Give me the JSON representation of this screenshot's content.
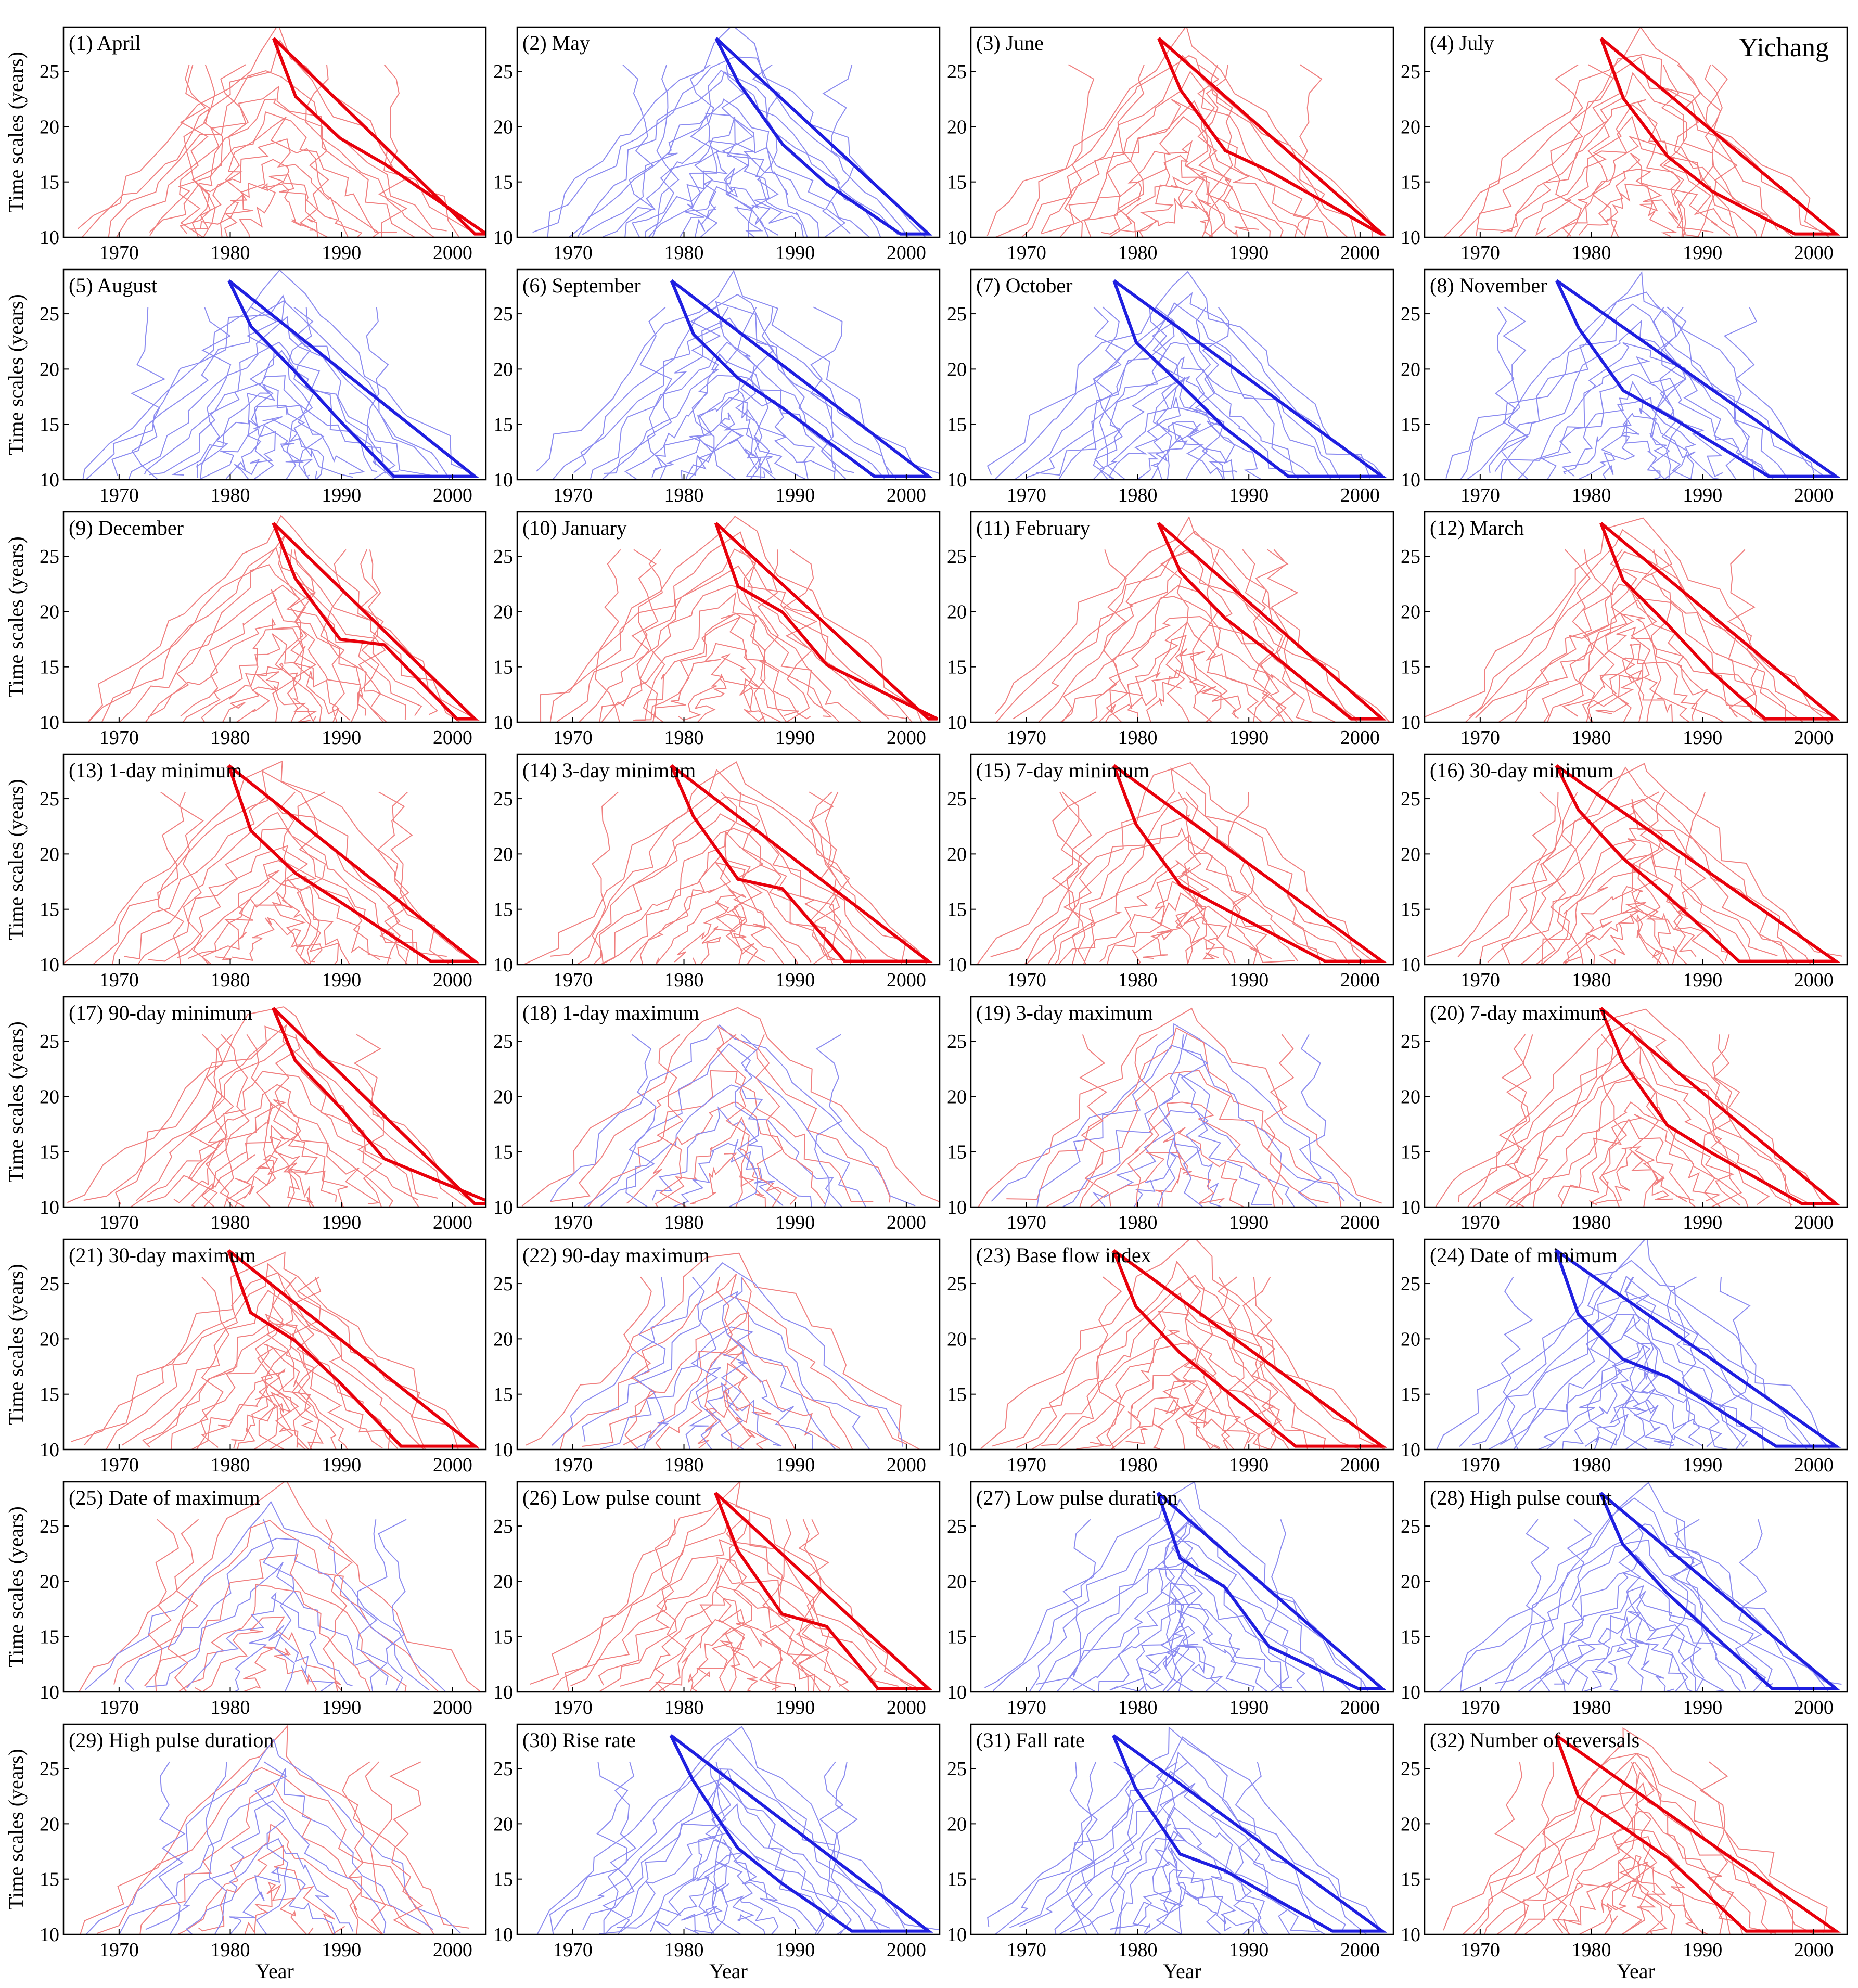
{
  "figure": {
    "station_label": "Yichang",
    "y_axis_label": "Time scales (years)",
    "x_axis_label": "Year",
    "colors": {
      "positive": "#e8000b",
      "negative": "#1f1fe0",
      "positive_faint": "#f08080",
      "negative_faint": "#8c8cf0",
      "axis": "#000000"
    }
  },
  "chart_data": {
    "type": "contour",
    "grid": {
      "rows": 8,
      "cols": 4
    },
    "xlim": [
      1965,
      2003
    ],
    "ylim": [
      10,
      29
    ],
    "xticks": [
      1970,
      1980,
      1990,
      2000
    ],
    "yticks": [
      10,
      15,
      20,
      25
    ],
    "panels": [
      {
        "label": "(1) April",
        "tone": "red"
      },
      {
        "label": "(2) May",
        "tone": "blue"
      },
      {
        "label": "(3) June",
        "tone": "red"
      },
      {
        "label": "(4) July",
        "tone": "red"
      },
      {
        "label": "(5) August",
        "tone": "blue"
      },
      {
        "label": "(6) September",
        "tone": "blue"
      },
      {
        "label": "(7) October",
        "tone": "blue"
      },
      {
        "label": "(8) November",
        "tone": "blue"
      },
      {
        "label": "(9) December",
        "tone": "red"
      },
      {
        "label": "(10) January",
        "tone": "red"
      },
      {
        "label": "(11) February",
        "tone": "red"
      },
      {
        "label": "(12) March",
        "tone": "red"
      },
      {
        "label": "(13) 1-day minimum",
        "tone": "red"
      },
      {
        "label": "(14) 3-day minimum",
        "tone": "red"
      },
      {
        "label": "(15) 7-day minimum",
        "tone": "red"
      },
      {
        "label": "(16) 30-day minimum",
        "tone": "red"
      },
      {
        "label": "(17) 90-day minimum",
        "tone": "red"
      },
      {
        "label": "(18) 1-day maximum",
        "tone": "mixed"
      },
      {
        "label": "(19) 3-day maximum",
        "tone": "mixed"
      },
      {
        "label": "(20) 7-day maximum",
        "tone": "red"
      },
      {
        "label": "(21) 30-day maximum",
        "tone": "red"
      },
      {
        "label": "(22) 90-day maximum",
        "tone": "mixed"
      },
      {
        "label": "(23) Base flow index",
        "tone": "red"
      },
      {
        "label": "(24) Date of minimum",
        "tone": "blue"
      },
      {
        "label": "(25) Date of maximum",
        "tone": "mixed"
      },
      {
        "label": "(26) Low pulse count",
        "tone": "red"
      },
      {
        "label": "(27) Low pulse duration",
        "tone": "blue"
      },
      {
        "label": "(28) High pulse count",
        "tone": "blue"
      },
      {
        "label": "(29) High pulse duration",
        "tone": "mixed"
      },
      {
        "label": "(30) Rise rate",
        "tone": "blue"
      },
      {
        "label": "(31) Fall rate",
        "tone": "blue"
      },
      {
        "label": "(32) Number of reversals",
        "tone": "red"
      }
    ]
  }
}
